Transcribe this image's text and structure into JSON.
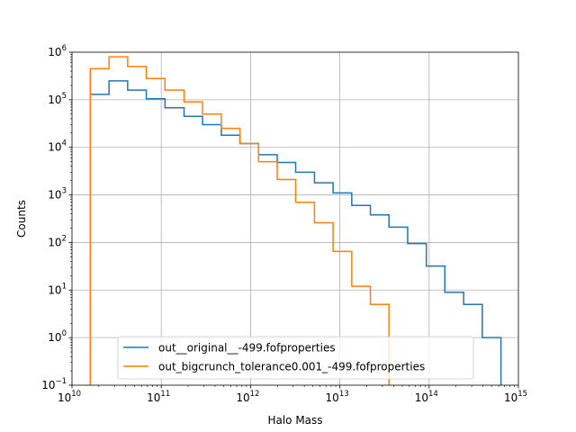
{
  "chart_data": {
    "type": "histogram",
    "xlabel": "Halo Mass",
    "ylabel": "Counts",
    "xscale": "log",
    "yscale": "log",
    "xlim": [
      10000000000.0,
      1000000000000000.0
    ],
    "ylim": [
      0.1,
      1000000
    ],
    "x_ticks": [
      {
        "base": "10",
        "exp": "10"
      },
      {
        "base": "10",
        "exp": "11"
      },
      {
        "base": "10",
        "exp": "12"
      },
      {
        "base": "10",
        "exp": "13"
      },
      {
        "base": "10",
        "exp": "14"
      },
      {
        "base": "10",
        "exp": "15"
      }
    ],
    "y_ticks": [
      {
        "base": "10",
        "exp": "−1"
      },
      {
        "base": "10",
        "exp": "0"
      },
      {
        "base": "10",
        "exp": "1"
      },
      {
        "base": "10",
        "exp": "2"
      },
      {
        "base": "10",
        "exp": "3"
      },
      {
        "base": "10",
        "exp": "4"
      },
      {
        "base": "10",
        "exp": "5"
      },
      {
        "base": "10",
        "exp": "6"
      }
    ],
    "grid": true,
    "legend_position": "lower-center",
    "series": [
      {
        "name": "out__original__-499.fofproperties",
        "color": "#1f77b4",
        "bin_edges": [
          16000000000.0,
          26000000000.0,
          42000000000.0,
          68000000000.0,
          110000000000.0,
          180000000000.0,
          290000000000.0,
          470000000000.0,
          760000000000.0,
          1230000000000.0,
          1990000000000.0,
          3200000000000.0,
          5200000000000.0,
          8400000000000.0,
          13600000000000.0,
          22000000000000.0,
          35500000000000.0,
          57500000000000.0,
          93000000000000.0,
          150000000000000.0,
          244000000000000.0,
          394000000000000.0,
          638000000000000.0
        ],
        "counts": [
          130000,
          250000,
          160000,
          105000,
          68000,
          45000,
          30000,
          18000,
          12000,
          7000,
          4800,
          3000,
          1800,
          1100,
          600,
          380,
          210,
          95,
          32,
          9,
          5,
          1
        ]
      },
      {
        "name": "out_bigcrunch_tolerance0.001_-499.fofproperties",
        "color": "#ff7f0e",
        "bin_edges": [
          16000000000.0,
          26000000000.0,
          42000000000.0,
          68000000000.0,
          110000000000.0,
          180000000000.0,
          290000000000.0,
          470000000000.0,
          760000000000.0,
          1230000000000.0,
          1990000000000.0,
          3200000000000.0,
          5200000000000.0,
          8400000000000.0,
          13600000000000.0,
          22000000000000.0,
          35500000000000.0
        ],
        "counts": [
          450000,
          800000,
          500000,
          280000,
          160000,
          90000,
          50000,
          25000,
          12000,
          5000,
          2100,
          700,
          260,
          65,
          12,
          5
        ]
      }
    ]
  }
}
